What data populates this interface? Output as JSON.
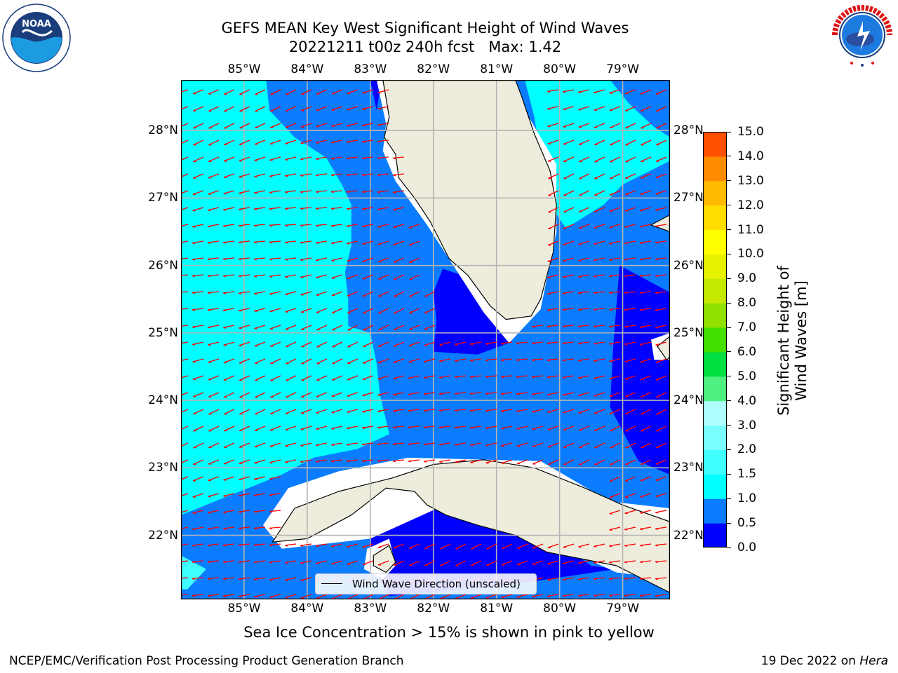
{
  "header": {
    "title_line1": "GEFS MEAN Key West Significant Height of Wind Waves",
    "title_line2": "20221211 t00z 240h fcst   Max: 1.42"
  },
  "logos": {
    "left": "NOAA",
    "left_ring": "NATIONAL OCEANIC AND ATMOSPHERIC ADMINISTRATION · U.S. DEPARTMENT OF COMMERCE",
    "right": "NATIONAL WEATHER SERVICE"
  },
  "map": {
    "lon_labels": [
      "85°W",
      "84°W",
      "83°W",
      "82°W",
      "81°W",
      "80°W",
      "79°W"
    ],
    "lat_labels": [
      "28°N",
      "27°N",
      "26°N",
      "25°N",
      "24°N",
      "23°N",
      "22°N"
    ],
    "extent": {
      "lon_min": -86,
      "lon_max": -78.25,
      "lat_min": 21.05,
      "lat_max": 28.75
    },
    "legend_label": "Wind Wave Direction (unscaled)",
    "colors": {
      "land": "#eeeddd",
      "grid": "#b4b4b4",
      "arrow": "#ff0000",
      "coast": "#000000"
    }
  },
  "colorbar": {
    "label": "Significant Height of Wind Waves [m]",
    "ticks": [
      "0.0",
      "0.5",
      "1.0",
      "1.5",
      "2.0",
      "3.0",
      "4.0",
      "5.0",
      "6.0",
      "7.0",
      "8.0",
      "9.0",
      "10.0",
      "11.0",
      "12.0",
      "13.0",
      "14.0",
      "15.0"
    ],
    "colors": [
      "#0000ff",
      "#0a7cff",
      "#00ffff",
      "#40ffff",
      "#7affff",
      "#afffff",
      "#50f080",
      "#00e040",
      "#44e000",
      "#90e000",
      "#c4e800",
      "#e6f200",
      "#ffff00",
      "#ffdd00",
      "#ffbb00",
      "#ff8c00",
      "#ff5000",
      "#ff2200",
      "#ff0000"
    ]
  },
  "footer": {
    "ice_note": "Sea Ice Concentration > 15% is shown in pink to yellow",
    "left": "NCEP/EMC/Verification Post Processing Product Generation Branch",
    "right_date": "19 Dec 2022 on ",
    "right_host": "Hera"
  }
}
